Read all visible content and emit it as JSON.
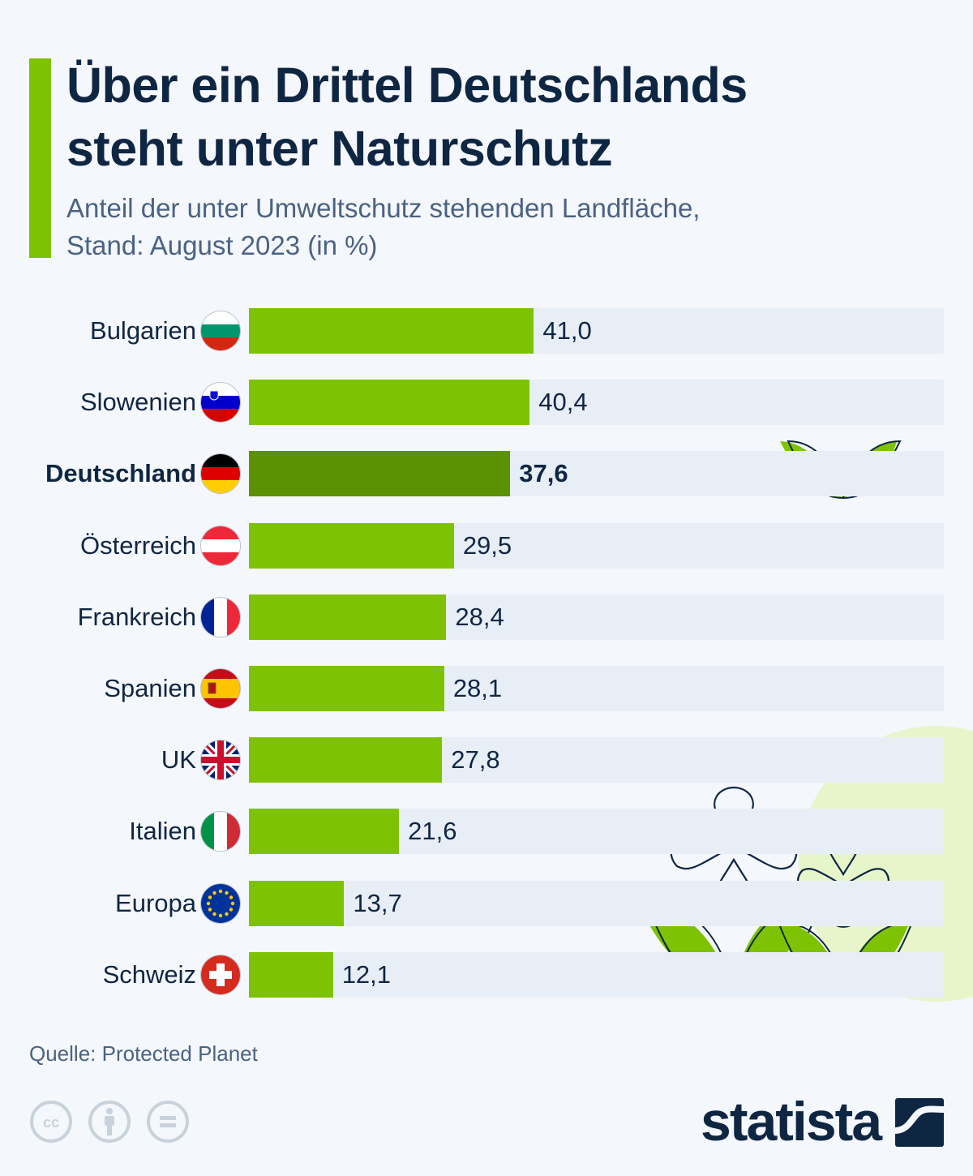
{
  "header": {
    "title": "Über ein Drittel Deutschlands steht unter Naturschutz",
    "title_line1": "Über ein Drittel Deutschlands",
    "title_line2": "steht unter Naturschutz",
    "subtitle_line1": "Anteil der unter Umweltschutz stehenden Landfläche,",
    "subtitle_line2": "Stand: August 2023 (in %)"
  },
  "colors": {
    "accent": "#7ec204",
    "bar": "#7ec204",
    "bar_highlight": "#5a9204",
    "track": "#e8eef6",
    "text": "#0f2643",
    "background": "#f4f7fb"
  },
  "chart_data": {
    "type": "bar",
    "orientation": "horizontal",
    "title": "Über ein Drittel Deutschlands steht unter Naturschutz",
    "subtitle": "Anteil der unter Umweltschutz stehenden Landfläche, Stand: August 2023 (in %)",
    "xlabel": "",
    "ylabel": "",
    "xlim": [
      0,
      100
    ],
    "grid": false,
    "legend": "none",
    "categories": [
      "Bulgarien",
      "Slowenien",
      "Deutschland",
      "Österreich",
      "Frankreich",
      "Spanien",
      "UK",
      "Italien",
      "Europa",
      "Schweiz"
    ],
    "values": [
      41.0,
      40.4,
      37.6,
      29.5,
      28.4,
      28.1,
      27.8,
      21.6,
      13.7,
      12.1
    ],
    "value_labels": [
      "41,0",
      "40,4",
      "37,6",
      "29,5",
      "28,4",
      "28,1",
      "27,8",
      "21,6",
      "13,7",
      "12,1"
    ],
    "highlighted": [
      "Deutschland"
    ],
    "flags": [
      "flag-bulgaria-icon",
      "flag-slovenia-icon",
      "flag-germany-icon",
      "flag-austria-icon",
      "flag-france-icon",
      "flag-spain-icon",
      "flag-uk-icon",
      "flag-italy-icon",
      "flag-eu-icon",
      "flag-switzerland-icon"
    ]
  },
  "footer": {
    "source": "Quelle: Protected Planet",
    "brand": "statista",
    "license_icons": [
      "cc-icon",
      "attribution-icon",
      "no-derivatives-icon"
    ]
  }
}
